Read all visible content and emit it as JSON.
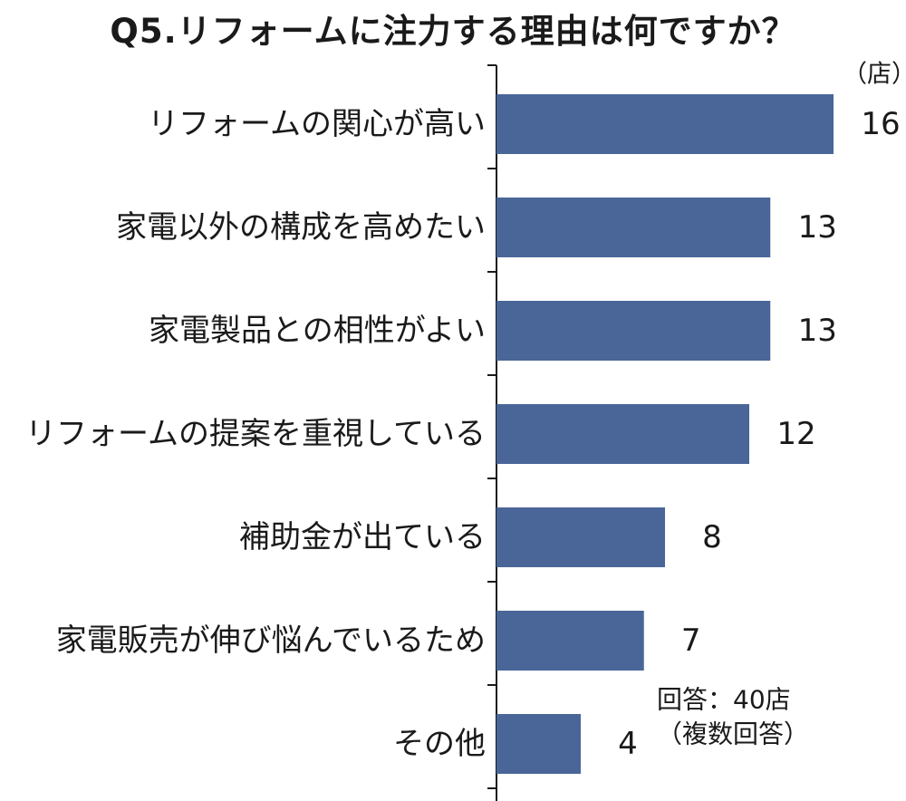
{
  "chart_data": {
    "type": "bar",
    "orientation": "horizontal",
    "title": "Q5.リフォームに注力する理由は何ですか？",
    "unit": "（店）",
    "categories": [
      "リフォームの関心が高い",
      "家電以外の構成を高めたい",
      "家電製品との相性がよい",
      "リフォームの提案を重視している",
      "補助金が出ている",
      "家電販売が伸び悩んでいるため",
      "その他"
    ],
    "values": [
      16,
      13,
      13,
      12,
      8,
      7,
      4
    ],
    "value_labels": [
      "16",
      "13",
      "13",
      "12",
      "8",
      "7",
      "4"
    ],
    "note": [
      "回答：40店",
      "（複数回答）"
    ],
    "xlim": [
      0,
      16
    ],
    "grid": false,
    "legend": "none",
    "bar_color": "#4a6698"
  }
}
